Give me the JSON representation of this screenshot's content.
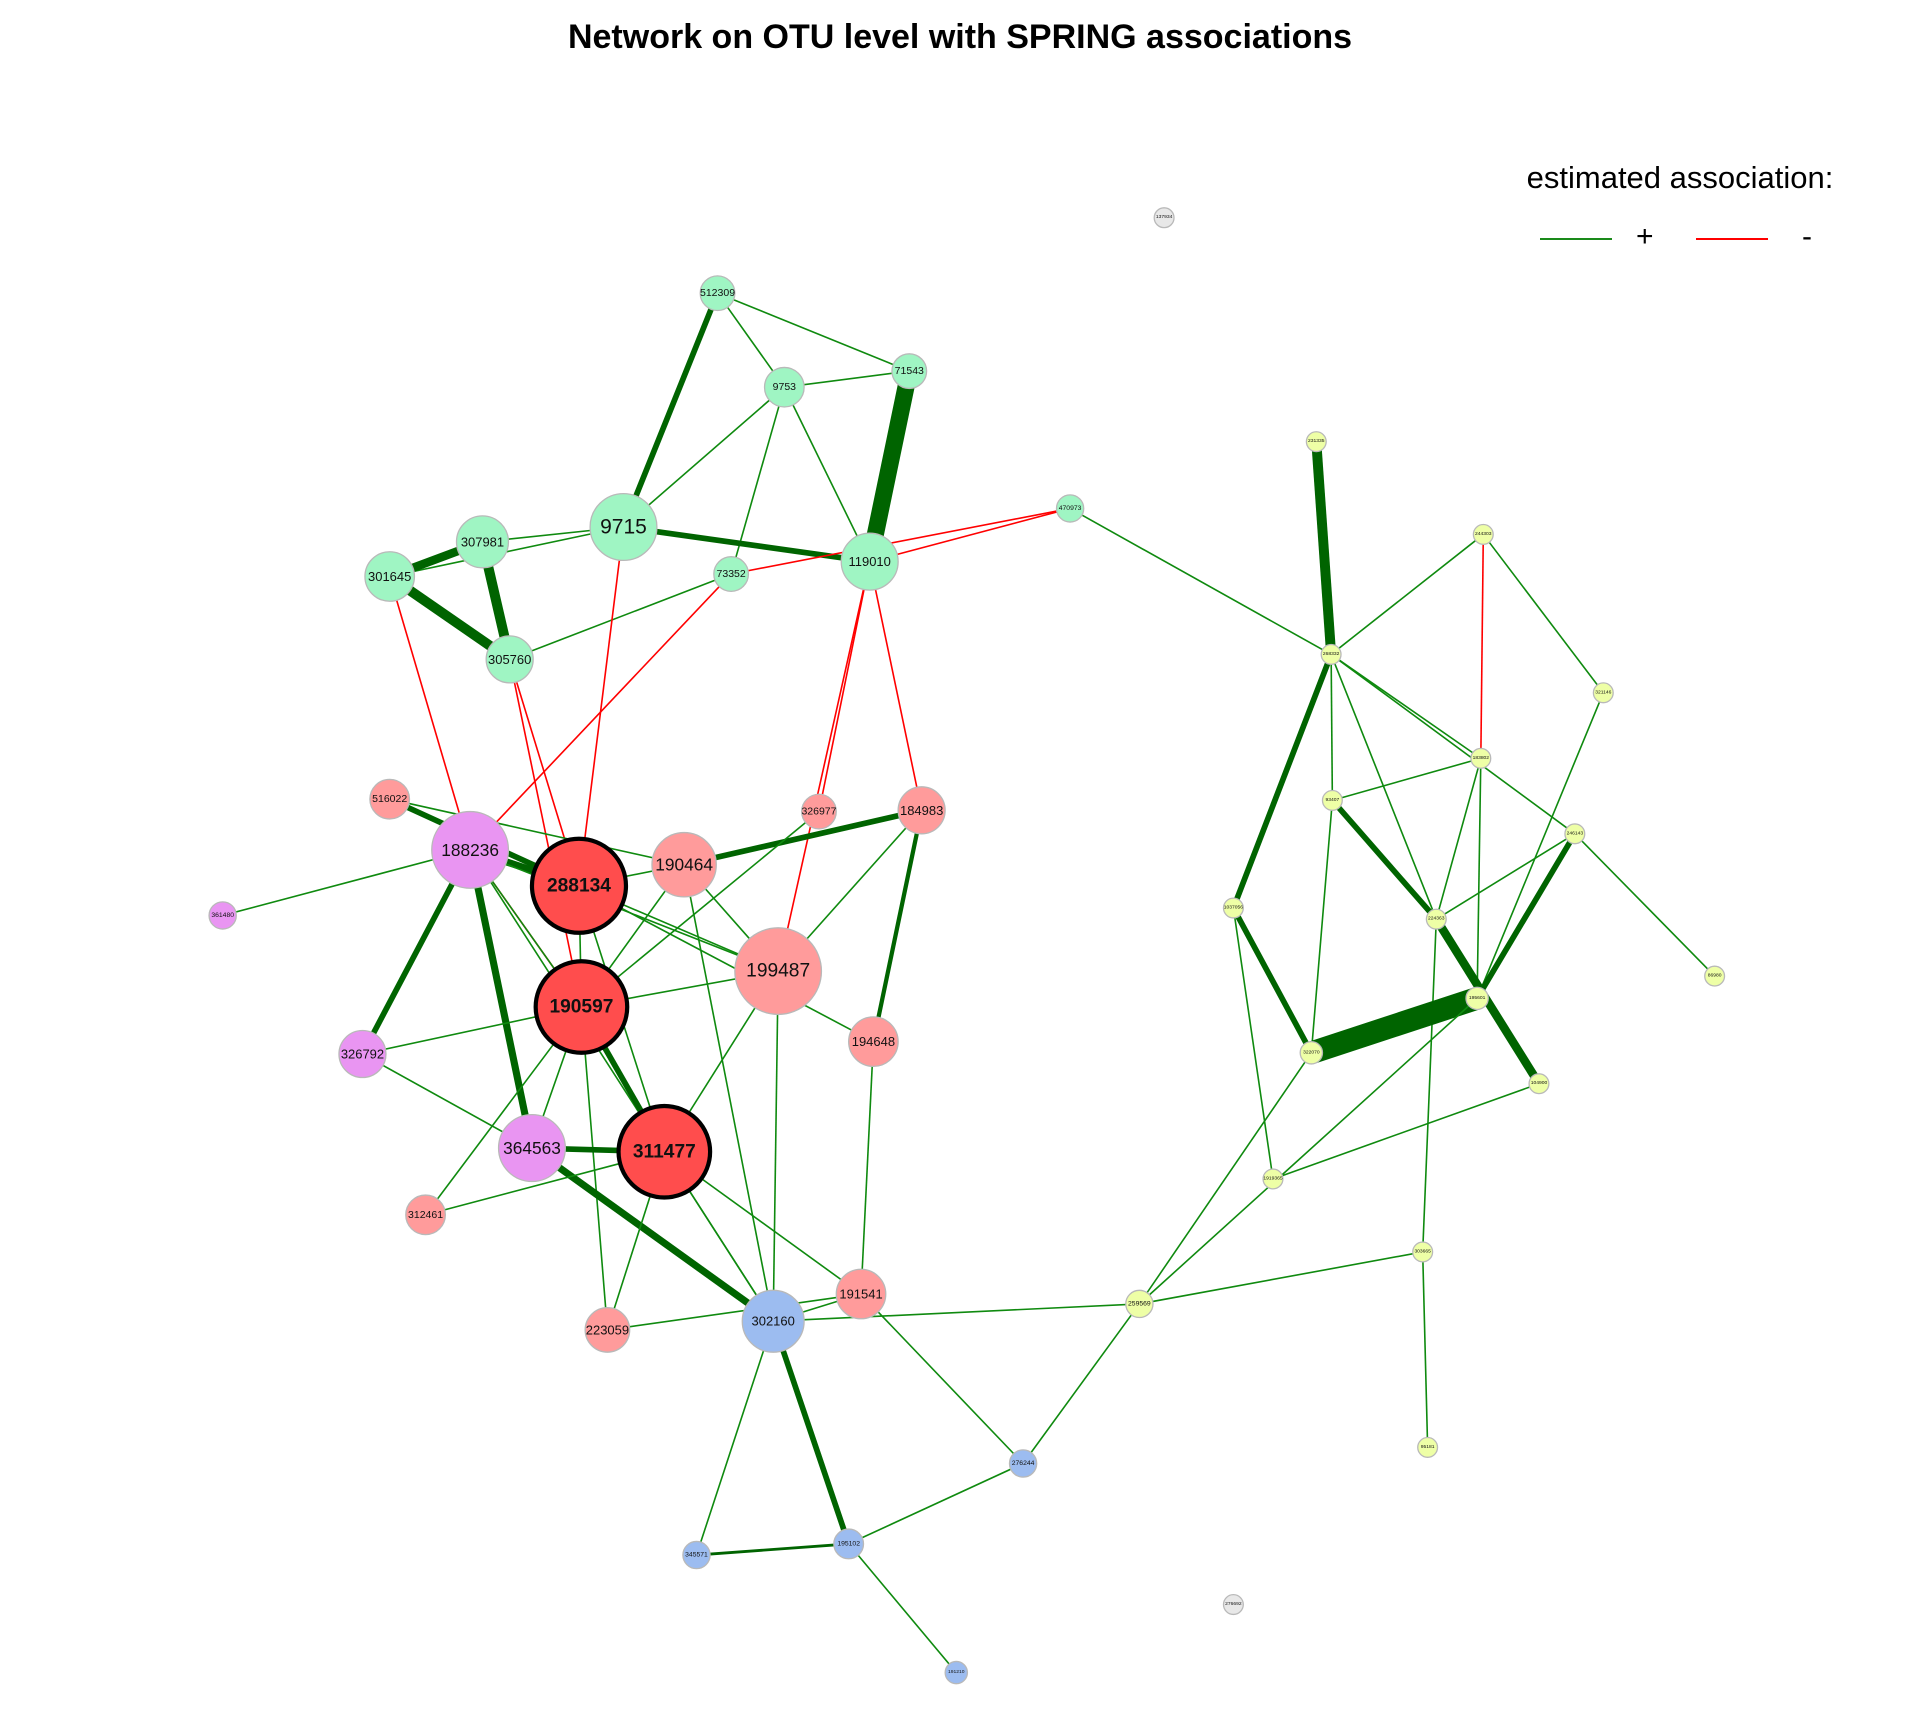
{
  "title": "Network on OTU level with SPRING associations",
  "legend": {
    "title": "estimated association:",
    "positive_symbol": "+",
    "negative_symbol": "-",
    "positive_color": "#1a8a1a",
    "negative_color": "#ff0000"
  },
  "colors": {
    "cluster_green": "#9ff5c3",
    "cluster_red_light": "#ff9b9b",
    "cluster_red_hub": "#ff4d4d",
    "cluster_violet": "#e995f2",
    "cluster_blue": "#9cbcf0",
    "cluster_yellow": "#eeffa6",
    "isolated_gray": "#e8e8e8",
    "edge_positive": "#0f8a0f",
    "edge_positive_strong": "#006400",
    "edge_negative": "#ff0000"
  },
  "nodes": [
    {
      "id": "512309",
      "label": "512309",
      "group": "green"
    },
    {
      "id": "9753",
      "label": "9753",
      "group": "green"
    },
    {
      "id": "71543",
      "label": "71543",
      "group": "green"
    },
    {
      "id": "9715",
      "label": "9715",
      "group": "green"
    },
    {
      "id": "307981",
      "label": "307981",
      "group": "green"
    },
    {
      "id": "301645",
      "label": "301645",
      "group": "green"
    },
    {
      "id": "305760",
      "label": "305760",
      "group": "green"
    },
    {
      "id": "73352",
      "label": "73352",
      "group": "green"
    },
    {
      "id": "119010",
      "label": "119010",
      "group": "green"
    },
    {
      "id": "470973",
      "label": "470973",
      "group": "green"
    },
    {
      "id": "516022",
      "label": "516022",
      "group": "red_light"
    },
    {
      "id": "188236",
      "label": "188236",
      "group": "violet"
    },
    {
      "id": "288134",
      "label": "288134",
      "group": "red_hub",
      "hub": true
    },
    {
      "id": "190464",
      "label": "190464",
      "group": "red_light"
    },
    {
      "id": "326977",
      "label": "326977",
      "group": "red_light"
    },
    {
      "id": "184983",
      "label": "184983",
      "group": "red_light"
    },
    {
      "id": "361480",
      "label": "361480",
      "group": "violet"
    },
    {
      "id": "190597",
      "label": "190597",
      "group": "red_hub",
      "hub": true
    },
    {
      "id": "199487",
      "label": "199487",
      "group": "red_light"
    },
    {
      "id": "194648",
      "label": "194648",
      "group": "red_light"
    },
    {
      "id": "326792",
      "label": "326792",
      "group": "violet"
    },
    {
      "id": "364563",
      "label": "364563",
      "group": "violet"
    },
    {
      "id": "311477",
      "label": "311477",
      "group": "red_hub",
      "hub": true
    },
    {
      "id": "312461",
      "label": "312461",
      "group": "red_light"
    },
    {
      "id": "191541",
      "label": "191541",
      "group": "red_light"
    },
    {
      "id": "223059",
      "label": "223059",
      "group": "red_light"
    },
    {
      "id": "302160",
      "label": "302160",
      "group": "blue"
    },
    {
      "id": "276244",
      "label": "276244",
      "group": "blue"
    },
    {
      "id": "345571",
      "label": "345571",
      "group": "blue"
    },
    {
      "id": "195102",
      "label": "195102",
      "group": "blue"
    },
    {
      "id": "191210",
      "label": "191210",
      "group": "blue"
    },
    {
      "id": "137934",
      "label": "137934",
      "group": "gray"
    },
    {
      "id": "276692",
      "label": "276692",
      "group": "gray"
    },
    {
      "id": "231335",
      "label": "231335",
      "group": "yellow"
    },
    {
      "id": "244303",
      "label": "244303",
      "group": "yellow"
    },
    {
      "id": "268332",
      "label": "268332",
      "group": "yellow"
    },
    {
      "id": "321146",
      "label": "321146",
      "group": "yellow"
    },
    {
      "id": "183802",
      "label": "183802",
      "group": "yellow"
    },
    {
      "id": "93407",
      "label": "93407",
      "group": "yellow"
    },
    {
      "id": "246143",
      "label": "246143",
      "group": "yellow"
    },
    {
      "id": "1037056",
      "label": "1037056",
      "group": "yellow"
    },
    {
      "id": "224363",
      "label": "224363",
      "group": "yellow"
    },
    {
      "id": "86980",
      "label": "86980",
      "group": "yellow"
    },
    {
      "id": "195601",
      "label": "195601",
      "group": "yellow"
    },
    {
      "id": "322070",
      "label": "322070",
      "group": "yellow"
    },
    {
      "id": "104900",
      "label": "104900",
      "group": "yellow"
    },
    {
      "id": "1919365",
      "label": "1919365",
      "group": "yellow"
    },
    {
      "id": "303665",
      "label": "303665",
      "group": "yellow"
    },
    {
      "id": "259569",
      "label": "259569",
      "group": "yellow"
    },
    {
      "id": "95181",
      "label": "95181",
      "group": "yellow"
    }
  ],
  "edges": [
    {
      "source": "512309",
      "target": "9753",
      "sign": "+",
      "weight": 1
    },
    {
      "source": "512309",
      "target": "71543",
      "sign": "+",
      "weight": 1
    },
    {
      "source": "512309",
      "target": "9715",
      "sign": "+",
      "weight": 4
    },
    {
      "source": "9753",
      "target": "71543",
      "sign": "+",
      "weight": 1
    },
    {
      "source": "9753",
      "target": "9715",
      "sign": "+",
      "weight": 1
    },
    {
      "source": "9753",
      "target": "119010",
      "sign": "+",
      "weight": 1
    },
    {
      "source": "9753",
      "target": "73352",
      "sign": "+",
      "weight": 1
    },
    {
      "source": "71543",
      "target": "119010",
      "sign": "+",
      "weight": 12
    },
    {
      "source": "9715",
      "target": "119010",
      "sign": "+",
      "weight": 4
    },
    {
      "source": "9715",
      "target": "307981",
      "sign": "+",
      "weight": 1
    },
    {
      "source": "9715",
      "target": "301645",
      "sign": "+",
      "weight": 1
    },
    {
      "source": "307981",
      "target": "301645",
      "sign": "+",
      "weight": 6
    },
    {
      "source": "307981",
      "target": "305760",
      "sign": "+",
      "weight": 7
    },
    {
      "source": "301645",
      "target": "305760",
      "sign": "+",
      "weight": 7
    },
    {
      "source": "73352",
      "target": "305760",
      "sign": "+",
      "weight": 1
    },
    {
      "source": "119010",
      "target": "470973",
      "sign": "-",
      "weight": 1
    },
    {
      "source": "73352",
      "target": "470973",
      "sign": "-",
      "weight": 1
    },
    {
      "source": "470973",
      "target": "268332",
      "sign": "+",
      "weight": 1
    },
    {
      "source": "301645",
      "target": "188236",
      "sign": "-",
      "weight": 1
    },
    {
      "source": "305760",
      "target": "288134",
      "sign": "-",
      "weight": 1
    },
    {
      "source": "305760",
      "target": "190597",
      "sign": "-",
      "weight": 1
    },
    {
      "source": "9715",
      "target": "288134",
      "sign": "-",
      "weight": 1
    },
    {
      "source": "73352",
      "target": "188236",
      "sign": "-",
      "weight": 1
    },
    {
      "source": "119010",
      "target": "326977",
      "sign": "-",
      "weight": 1
    },
    {
      "source": "119010",
      "target": "199487",
      "sign": "-",
      "weight": 1
    },
    {
      "source": "119010",
      "target": "184983",
      "sign": "-",
      "weight": 1
    },
    {
      "source": "188236",
      "target": "190597",
      "sign": "-",
      "weight": 1
    },
    {
      "source": "516022",
      "target": "288134",
      "sign": "+",
      "weight": 4
    },
    {
      "source": "516022",
      "target": "190464",
      "sign": "+",
      "weight": 1
    },
    {
      "source": "188236",
      "target": "288134",
      "sign": "+",
      "weight": 5
    },
    {
      "source": "188236",
      "target": "361480",
      "sign": "+",
      "weight": 1
    },
    {
      "source": "188236",
      "target": "326792",
      "sign": "+",
      "weight": 4
    },
    {
      "source": "188236",
      "target": "364563",
      "sign": "+",
      "weight": 5
    },
    {
      "source": "188236",
      "target": "190597",
      "sign": "+",
      "weight": 1
    },
    {
      "source": "188236",
      "target": "199487",
      "sign": "+",
      "weight": 1
    },
    {
      "source": "188236",
      "target": "302160",
      "sign": "+",
      "weight": 1
    },
    {
      "source": "288134",
      "target": "190464",
      "sign": "+",
      "weight": 1
    },
    {
      "source": "288134",
      "target": "190597",
      "sign": "+",
      "weight": 1
    },
    {
      "source": "288134",
      "target": "199487",
      "sign": "+",
      "weight": 1
    },
    {
      "source": "288134",
      "target": "194648",
      "sign": "+",
      "weight": 1
    },
    {
      "source": "288134",
      "target": "311477",
      "sign": "+",
      "weight": 1
    },
    {
      "source": "190464",
      "target": "184983",
      "sign": "+",
      "weight": 4
    },
    {
      "source": "190464",
      "target": "199487",
      "sign": "+",
      "weight": 1
    },
    {
      "source": "190464",
      "target": "302160",
      "sign": "+",
      "weight": 1
    },
    {
      "source": "190464",
      "target": "190597",
      "sign": "+",
      "weight": 1
    },
    {
      "source": "326977",
      "target": "190597",
      "sign": "+",
      "weight": 1
    },
    {
      "source": "184983",
      "target": "194648",
      "sign": "+",
      "weight": 3
    },
    {
      "source": "184983",
      "target": "199487",
      "sign": "+",
      "weight": 1
    },
    {
      "source": "190597",
      "target": "311477",
      "sign": "+",
      "weight": 4
    },
    {
      "source": "190597",
      "target": "326792",
      "sign": "+",
      "weight": 1
    },
    {
      "source": "190597",
      "target": "199487",
      "sign": "+",
      "weight": 1
    },
    {
      "source": "190597",
      "target": "364563",
      "sign": "+",
      "weight": 1
    },
    {
      "source": "190597",
      "target": "223059",
      "sign": "+",
      "weight": 1
    },
    {
      "source": "190597",
      "target": "312461",
      "sign": "+",
      "weight": 1
    },
    {
      "source": "199487",
      "target": "302160",
      "sign": "+",
      "weight": 1
    },
    {
      "source": "199487",
      "target": "311477",
      "sign": "+",
      "weight": 1
    },
    {
      "source": "194648",
      "target": "191541",
      "sign": "+",
      "weight": 1
    },
    {
      "source": "326792",
      "target": "364563",
      "sign": "+",
      "weight": 1
    },
    {
      "source": "364563",
      "target": "311477",
      "sign": "+",
      "weight": 4
    },
    {
      "source": "364563",
      "target": "302160",
      "sign": "+",
      "weight": 5
    },
    {
      "source": "311477",
      "target": "312461",
      "sign": "+",
      "weight": 1
    },
    {
      "source": "311477",
      "target": "191541",
      "sign": "+",
      "weight": 1
    },
    {
      "source": "311477",
      "target": "223059",
      "sign": "+",
      "weight": 1
    },
    {
      "source": "311477",
      "target": "302160",
      "sign": "+",
      "weight": 1
    },
    {
      "source": "223059",
      "target": "191541",
      "sign": "+",
      "weight": 1
    },
    {
      "source": "302160",
      "target": "191541",
      "sign": "+",
      "weight": 1
    },
    {
      "source": "302160",
      "target": "259569",
      "sign": "+",
      "weight": 1
    },
    {
      "source": "302160",
      "target": "345571",
      "sign": "+",
      "weight": 1
    },
    {
      "source": "302160",
      "target": "195102",
      "sign": "+",
      "weight": 4
    },
    {
      "source": "191541",
      "target": "276244",
      "sign": "+",
      "weight": 1
    },
    {
      "source": "345571",
      "target": "195102",
      "sign": "+",
      "weight": 2
    },
    {
      "source": "195102",
      "target": "276244",
      "sign": "+",
      "weight": 1
    },
    {
      "source": "195102",
      "target": "191210",
      "sign": "+",
      "weight": 1
    },
    {
      "source": "276244",
      "target": "259569",
      "sign": "+",
      "weight": 1
    },
    {
      "source": "231335",
      "target": "268332",
      "sign": "+",
      "weight": 7
    },
    {
      "source": "244303",
      "target": "268332",
      "sign": "+",
      "weight": 1
    },
    {
      "source": "244303",
      "target": "183802",
      "sign": "-",
      "weight": 1
    },
    {
      "source": "244303",
      "target": "321146",
      "sign": "+",
      "weight": 1
    },
    {
      "source": "268332",
      "target": "93407",
      "sign": "+",
      "weight": 1
    },
    {
      "source": "268332",
      "target": "1037056",
      "sign": "+",
      "weight": 4
    },
    {
      "source": "268332",
      "target": "224363",
      "sign": "+",
      "weight": 1
    },
    {
      "source": "268332",
      "target": "183802",
      "sign": "+",
      "weight": 1
    },
    {
      "source": "268332",
      "target": "246143",
      "sign": "+",
      "weight": 1
    },
    {
      "source": "321146",
      "target": "195601",
      "sign": "+",
      "weight": 1
    },
    {
      "source": "183802",
      "target": "93407",
      "sign": "+",
      "weight": 1
    },
    {
      "source": "183802",
      "target": "224363",
      "sign": "+",
      "weight": 1
    },
    {
      "source": "183802",
      "target": "195601",
      "sign": "+",
      "weight": 1
    },
    {
      "source": "93407",
      "target": "224363",
      "sign": "+",
      "weight": 4
    },
    {
      "source": "93407",
      "target": "322070",
      "sign": "+",
      "weight": 1
    },
    {
      "source": "246143",
      "target": "195601",
      "sign": "+",
      "weight": 4
    },
    {
      "source": "246143",
      "target": "86980",
      "sign": "+",
      "weight": 1
    },
    {
      "source": "246143",
      "target": "224363",
      "sign": "+",
      "weight": 1
    },
    {
      "source": "1037056",
      "target": "322070",
      "sign": "+",
      "weight": 4
    },
    {
      "source": "1037056",
      "target": "1919365",
      "sign": "+",
      "weight": 1
    },
    {
      "source": "224363",
      "target": "104900",
      "sign": "+",
      "weight": 6
    },
    {
      "source": "224363",
      "target": "303665",
      "sign": "+",
      "weight": 1
    },
    {
      "source": "322070",
      "target": "195601",
      "sign": "+",
      "weight": 16
    },
    {
      "source": "322070",
      "target": "259569",
      "sign": "+",
      "weight": 1
    },
    {
      "source": "195601",
      "target": "259569",
      "sign": "+",
      "weight": 1
    },
    {
      "source": "104900",
      "target": "1919365",
      "sign": "+",
      "weight": 1
    },
    {
      "source": "303665",
      "target": "259569",
      "sign": "+",
      "weight": 1
    },
    {
      "source": "303665",
      "target": "95181",
      "sign": "+",
      "weight": 1
    }
  ]
}
